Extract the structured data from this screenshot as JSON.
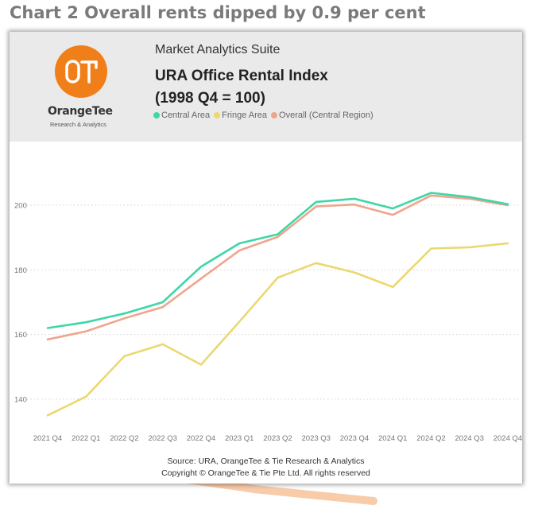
{
  "heading": "Chart 2 Overall rents dipped by 0.9 per cent",
  "brand": {
    "logo_text": "OT",
    "name": "OrangeTee",
    "tagline": "Research & Analytics"
  },
  "suite": "Market Analytics Suite",
  "title_lines": [
    "URA Office Rental Index",
    "(1998 Q4 = 100)"
  ],
  "source_lines": [
    "Source: URA, OrangeTee & Tie Research & Analytics",
    "Copyright © OrangeTee & Tie Pte Ltd. All rights reserved"
  ],
  "colors": {
    "central": "#3fd6a6",
    "fringe": "#ebd872",
    "overall": "#efa58c",
    "brand_orange": "#f07f1a"
  },
  "chart_data": {
    "type": "line",
    "title": "URA Office Rental Index (1998 Q4 = 100)",
    "xlabel": "",
    "ylabel": "",
    "categories": [
      "2021 Q4",
      "2022 Q1",
      "2022 Q2",
      "2022 Q3",
      "2022 Q4",
      "2023 Q1",
      "2023 Q2",
      "2023 Q3",
      "2023 Q4",
      "2024 Q1",
      "2024 Q2",
      "2024 Q3",
      "2024 Q4"
    ],
    "yticks": [
      140,
      160,
      180,
      200
    ],
    "ylim": [
      133,
      215
    ],
    "grid": true,
    "legend_position": "top",
    "series": [
      {
        "name": "Central Area",
        "color_key": "central",
        "values": [
          162.0,
          163.8,
          166.5,
          170.0,
          181.0,
          188.2,
          191.0,
          201.0,
          202.0,
          199.0,
          203.8,
          202.5,
          200.3
        ]
      },
      {
        "name": "Fringe Area",
        "color_key": "fringe",
        "values": [
          135.0,
          140.8,
          153.3,
          157.0,
          150.7,
          164.0,
          177.6,
          182.1,
          179.2,
          174.7,
          186.6,
          187.0,
          188.2
        ]
      },
      {
        "name": "Overall (Central Region)",
        "color_key": "overall",
        "values": [
          158.5,
          161.0,
          165.0,
          168.5,
          177.3,
          186.0,
          190.2,
          199.6,
          200.2,
          197.0,
          203.0,
          202.0,
          200.0
        ]
      }
    ]
  }
}
